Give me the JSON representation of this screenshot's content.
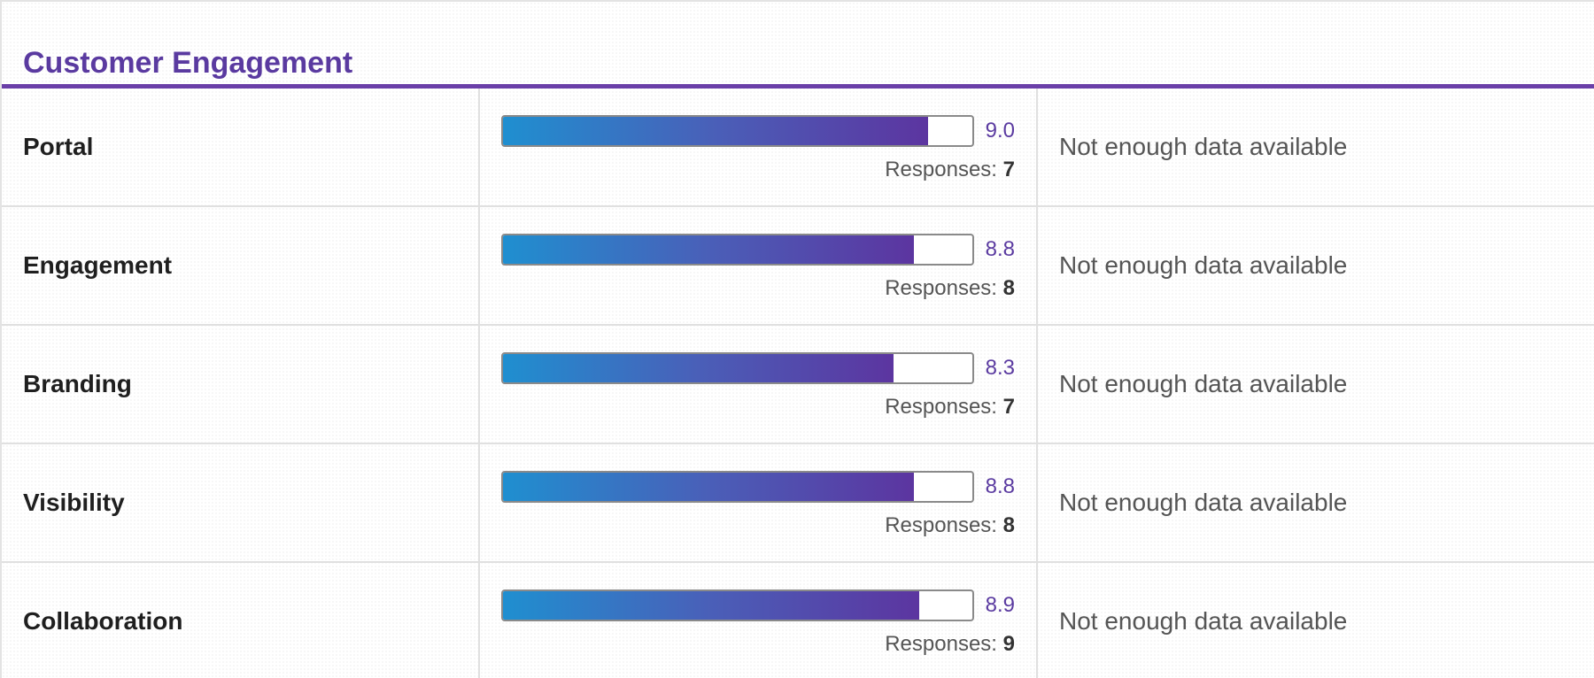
{
  "section": {
    "title": "Customer Engagement"
  },
  "responses_label": "Responses:",
  "rows": [
    {
      "label": "Portal",
      "score": "9.0",
      "score_fraction": 0.905,
      "responses": "7",
      "note": "Not enough data available"
    },
    {
      "label": "Engagement",
      "score": "8.8",
      "score_fraction": 0.875,
      "responses": "8",
      "note": "Not enough data available"
    },
    {
      "label": "Branding",
      "score": "8.3",
      "score_fraction": 0.832,
      "responses": "7",
      "note": "Not enough data available"
    },
    {
      "label": "Visibility",
      "score": "8.8",
      "score_fraction": 0.875,
      "responses": "8",
      "note": "Not enough data available"
    },
    {
      "label": "Collaboration",
      "score": "8.9",
      "score_fraction": 0.886,
      "responses": "9",
      "note": "Not enough data available"
    }
  ],
  "colors": {
    "accent": "#5a3aa0",
    "bar_start": "#1f8fd0",
    "bar_end": "#5c35a0"
  }
}
